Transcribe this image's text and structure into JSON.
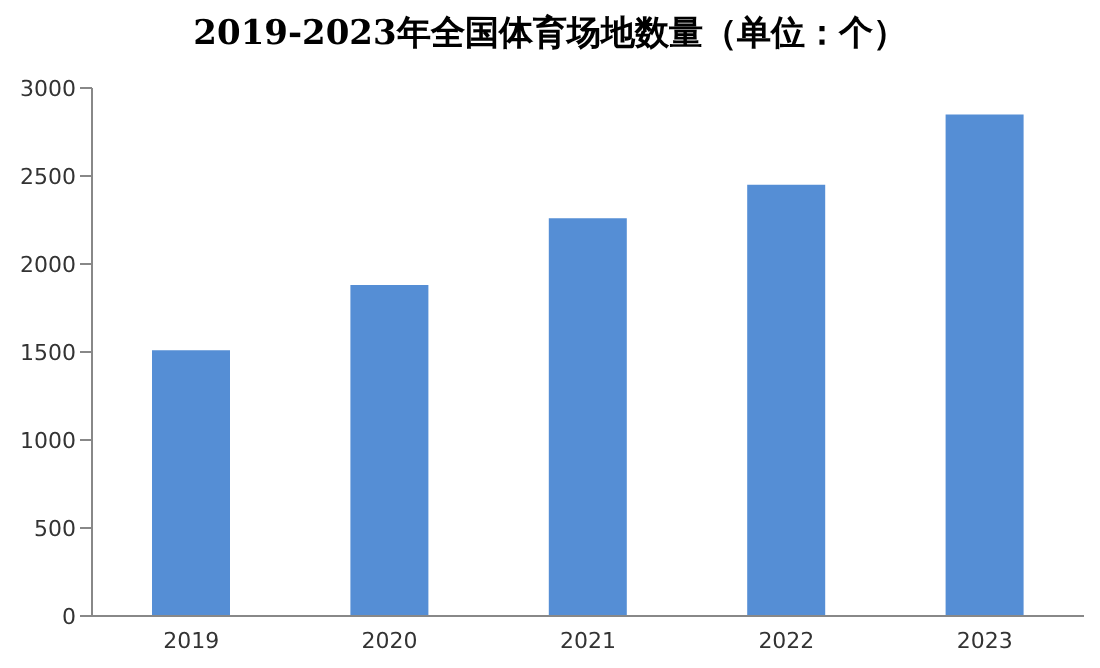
{
  "chart_data": {
    "type": "bar",
    "title": "2019-2023年全国体育场地数量（单位：个）",
    "categories": [
      "2019",
      "2020",
      "2021",
      "2022",
      "2023"
    ],
    "values": [
      1510,
      1880,
      2260,
      2450,
      2850
    ],
    "color": "#558ed5",
    "ylim": [
      0,
      3000
    ],
    "yticks": [
      0,
      500,
      1000,
      1500,
      2000,
      2500,
      3000
    ],
    "grid": false
  }
}
